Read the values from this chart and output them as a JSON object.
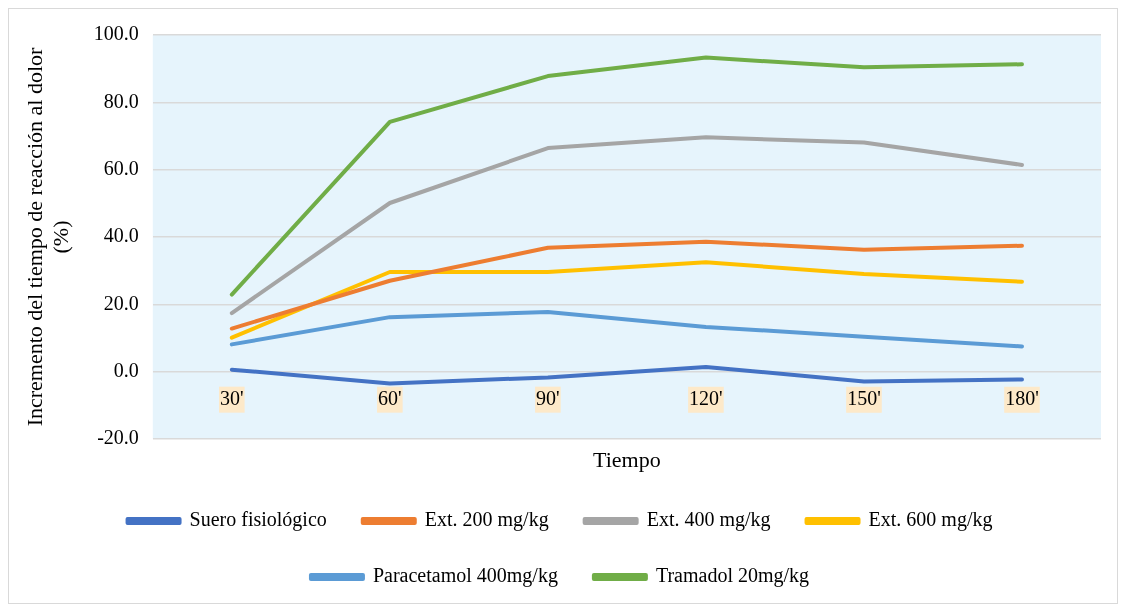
{
  "chart_data": {
    "type": "line",
    "xlabel": "Tiempo",
    "ylabel": "Incremento del tiempo de reacción al dolor (%)",
    "categories": [
      "30'",
      "60'",
      "90'",
      "120'",
      "150'",
      "180'"
    ],
    "series": [
      {
        "name": "Suero fisiológico",
        "color": "#4472c4",
        "values": [
          0.6,
          -3.5,
          -1.7,
          1.4,
          -2.9,
          -2.3
        ]
      },
      {
        "name": "Ext. 200 mg/kg",
        "color": "#ed7d31",
        "values": [
          12.8,
          27.0,
          36.8,
          38.6,
          36.2,
          37.4
        ]
      },
      {
        "name": "Ext. 400 mg/kg",
        "color": "#a5a5a5",
        "values": [
          17.4,
          50.1,
          66.4,
          69.6,
          68.1,
          61.4
        ]
      },
      {
        "name": "Ext. 600 mg/kg",
        "color": "#ffc000",
        "values": [
          10.1,
          29.6,
          29.6,
          32.5,
          29.0,
          26.7
        ]
      },
      {
        "name": "Paracetamol 400mg/kg",
        "color": "#5b9bd5",
        "values": [
          8.1,
          16.2,
          17.7,
          13.3,
          10.4,
          7.5
        ]
      },
      {
        "name": "Tramadol 20mg/kg",
        "color": "#70ad47",
        "values": [
          22.9,
          74.2,
          87.8,
          93.3,
          90.4,
          91.3
        ]
      }
    ],
    "ylim": [
      -20,
      100
    ],
    "yticks": [
      {
        "value": -20,
        "label": "-20.0"
      },
      {
        "value": 0,
        "label": "0.0"
      },
      {
        "value": 20,
        "label": "20.0"
      },
      {
        "value": 40,
        "label": "40.0"
      },
      {
        "value": 60,
        "label": "60.0"
      },
      {
        "value": 80,
        "label": "80.0"
      },
      {
        "value": 100,
        "label": "100.0"
      }
    ],
    "grid": "y",
    "legend": "bottom",
    "marker": "none",
    "line_style": "solid"
  }
}
